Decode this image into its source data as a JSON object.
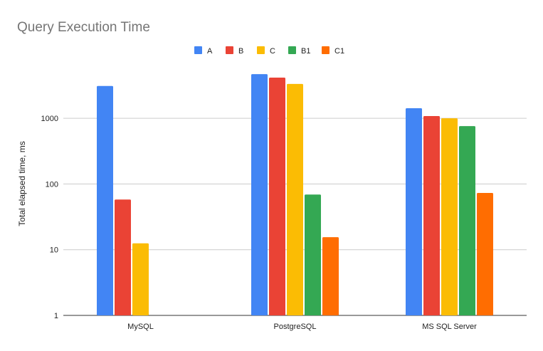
{
  "chart_data": {
    "type": "bar",
    "title": "Query Execution Time",
    "xlabel": "",
    "ylabel": "Total elapsed time, ms",
    "yscale": "log",
    "ylim": [
      1,
      10000
    ],
    "yticks": [
      1,
      10,
      100,
      1000
    ],
    "ytick_labels": [
      "1",
      "10",
      "100",
      "1000"
    ],
    "grid": true,
    "legend_position": "top",
    "categories": [
      "MySQL",
      "PostgreSQL",
      "MS SQL Server"
    ],
    "series": [
      {
        "name": "A",
        "color": "#4285f4",
        "values": [
          3100,
          4700,
          1420
        ]
      },
      {
        "name": "B",
        "color": "#ea4335",
        "values": [
          58,
          4150,
          1080
        ]
      },
      {
        "name": "C",
        "color": "#fbbc04",
        "values": [
          12.5,
          3330,
          1000
        ]
      },
      {
        "name": "B1",
        "color": "#34a853",
        "values": [
          null,
          69,
          760
        ]
      },
      {
        "name": "C1",
        "color": "#ff6d01",
        "values": [
          null,
          15.5,
          73
        ]
      }
    ]
  }
}
